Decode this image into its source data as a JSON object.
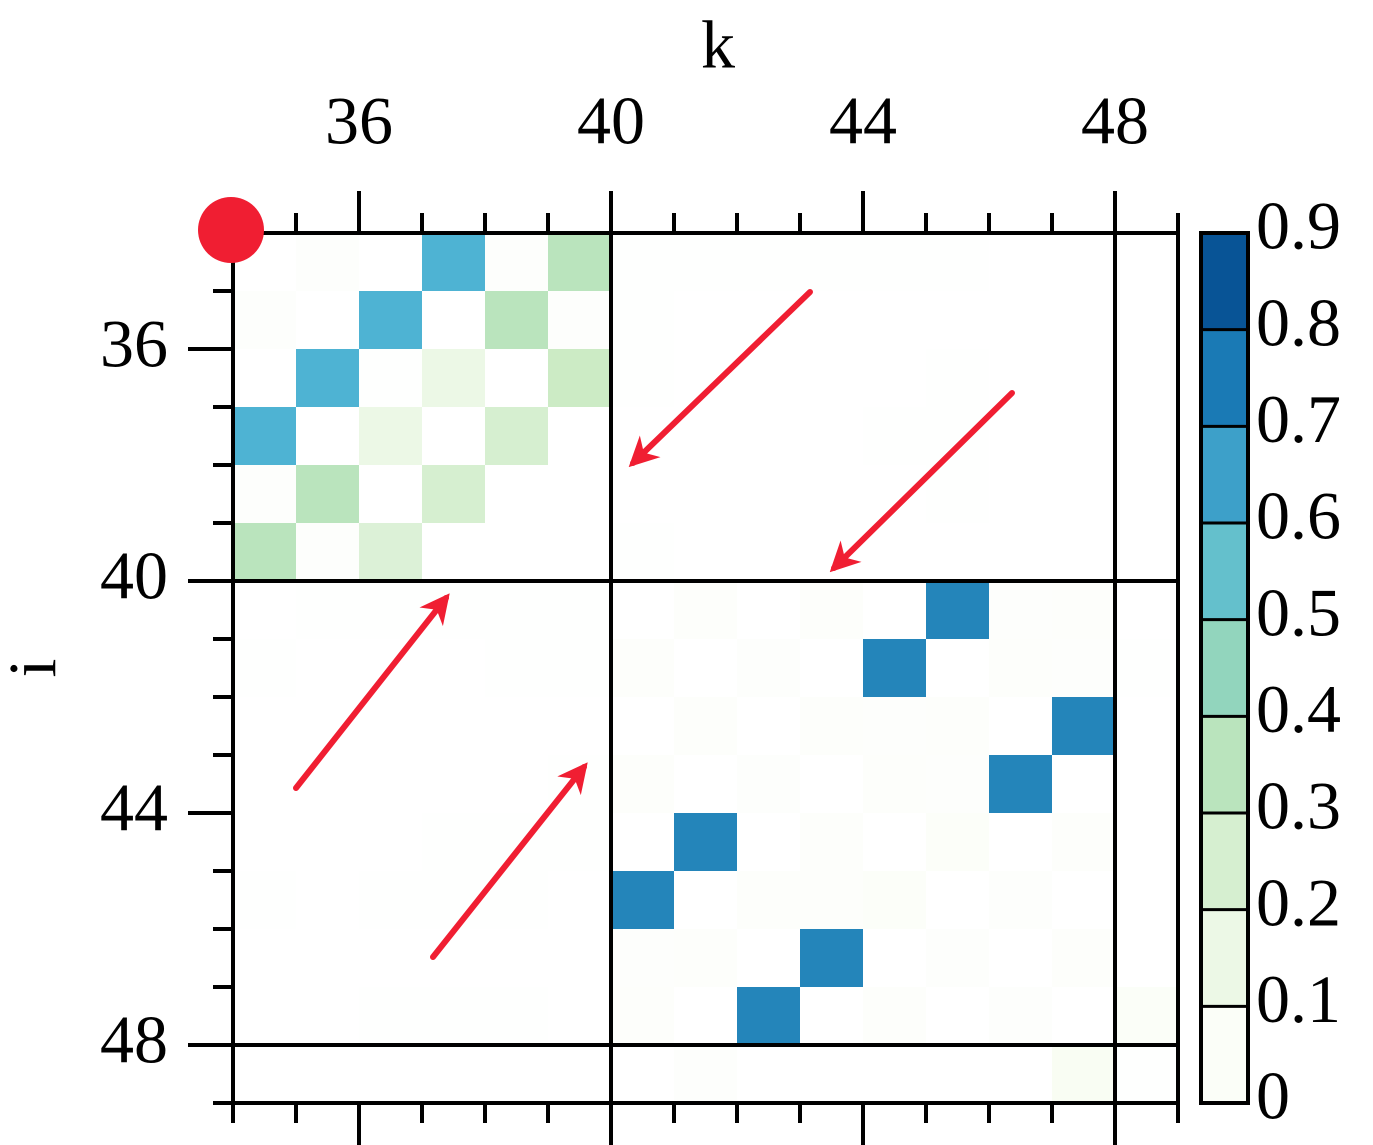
{
  "chart_data": {
    "type": "heatmap",
    "xlabel": "k",
    "ylabel": "i",
    "x": [
      34,
      35,
      36,
      37,
      38,
      39,
      40,
      41,
      42,
      43,
      44,
      45,
      46,
      47,
      48
    ],
    "y": [
      34,
      35,
      36,
      37,
      38,
      39,
      40,
      41,
      42,
      43,
      44,
      45,
      46,
      47,
      48
    ],
    "xlim": [
      34,
      49
    ],
    "ylim": [
      34,
      49
    ],
    "y_inverted": true,
    "xticks": [
      36,
      40,
      44,
      48
    ],
    "yticks": [
      36,
      40,
      44,
      48
    ],
    "minor_tick_step": 1,
    "block_lines": [
      40,
      48
    ],
    "z": [
      [
        0,
        0.02,
        0,
        0.6,
        0.02,
        0.35,
        0.01,
        0.01,
        0.01,
        0.01,
        0.01,
        0.01,
        0,
        0,
        0
      ],
      [
        0.02,
        0,
        0.6,
        0,
        0.35,
        0.02,
        0.01,
        0,
        0,
        0,
        0,
        0,
        0,
        0,
        0
      ],
      [
        0,
        0.6,
        0.01,
        0.15,
        0,
        0.3,
        0.01,
        0,
        0,
        0,
        0,
        0.01,
        0,
        0,
        0
      ],
      [
        0.6,
        0,
        0.15,
        0,
        0.25,
        0,
        0,
        0,
        0,
        0,
        0.01,
        0.01,
        0,
        0,
        0
      ],
      [
        0.02,
        0.35,
        0,
        0.25,
        0,
        0,
        0,
        0,
        0,
        0,
        0,
        0.01,
        0,
        0,
        0
      ],
      [
        0.35,
        0.02,
        0.22,
        0,
        0,
        0,
        0.01,
        0,
        0,
        0,
        0,
        0,
        0,
        0,
        0
      ],
      [
        0,
        0.01,
        0.01,
        0.01,
        0.01,
        0.01,
        0,
        0.03,
        0,
        0.03,
        0,
        0.72,
        0.02,
        0.03,
        0
      ],
      [
        0.01,
        0,
        0,
        0,
        0.01,
        0.01,
        0.03,
        0,
        0.02,
        0,
        0.72,
        0,
        0.03,
        0.02,
        0.01
      ],
      [
        0,
        0,
        0,
        0,
        0,
        0,
        0,
        0.03,
        0,
        0.03,
        0.02,
        0.03,
        0,
        0.72,
        0
      ],
      [
        0,
        0,
        0,
        0,
        0,
        0.01,
        0.03,
        0,
        0.02,
        0,
        0.03,
        0.02,
        0.72,
        0,
        0
      ],
      [
        0,
        0,
        0,
        0.01,
        0.01,
        0.01,
        0,
        0.72,
        0,
        0.03,
        0,
        0.04,
        0,
        0.03,
        0
      ],
      [
        0.01,
        0,
        0.01,
        0.01,
        0.01,
        0,
        0.72,
        0,
        0.03,
        0.03,
        0.04,
        0,
        0.02,
        0,
        0
      ],
      [
        0,
        0,
        0,
        0,
        0,
        0,
        0.02,
        0.03,
        0,
        0.72,
        0,
        0.02,
        0,
        0.03,
        0
      ],
      [
        0,
        0,
        0.01,
        0.01,
        0.01,
        0,
        0.03,
        0,
        0.72,
        0,
        0.03,
        0,
        0.02,
        0,
        0.05
      ],
      [
        0,
        0,
        0,
        0,
        0,
        0,
        0,
        0.02,
        0,
        0,
        0,
        0,
        0,
        0.08,
        0.01
      ]
    ],
    "clim": [
      0,
      0.9
    ],
    "cticks": [
      0,
      0.1,
      0.2,
      0.3,
      0.4,
      0.5,
      0.6,
      0.7,
      0.8,
      0.9
    ],
    "colors": [
      "#ffffff",
      "#f7fcf0",
      "#e0f3db",
      "#ccebc5",
      "#a8ddb5",
      "#7bccc4",
      "#4eb3d3",
      "#2b8cbe",
      "#0868ac",
      "#084081"
    ]
  }
}
